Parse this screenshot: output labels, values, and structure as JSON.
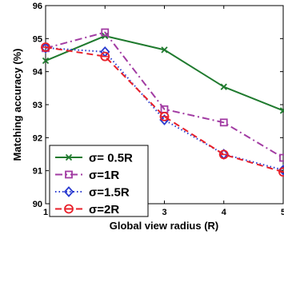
{
  "chart_data": {
    "type": "line",
    "xlabel": "Global view radius (R)",
    "ylabel": "Matching accuracy (%)",
    "x": [
      1,
      2,
      3,
      4,
      5
    ],
    "xlim": [
      1,
      5
    ],
    "ylim": [
      90,
      96
    ],
    "xticks": [
      "1",
      "2",
      "3",
      "4",
      "5"
    ],
    "yticks": [
      "90",
      "91",
      "92",
      "93",
      "94",
      "95",
      "96"
    ],
    "grid": false,
    "legend_position": "bottom-left",
    "series": [
      {
        "name": "σ= 0.5R",
        "values": [
          94.33,
          95.08,
          94.66,
          93.54,
          92.82
        ],
        "color": "#1f7a2e",
        "dash": "solid",
        "marker": "x"
      },
      {
        "name": "σ=1R",
        "values": [
          94.71,
          95.19,
          92.86,
          92.46,
          91.39
        ],
        "color": "#a23ca3",
        "dash": "dashdot",
        "marker": "square"
      },
      {
        "name": "σ=1.5R",
        "values": [
          94.72,
          94.6,
          92.54,
          91.5,
          91.02
        ],
        "color": "#2a3bd0",
        "dash": "dotted",
        "marker": "diamond"
      },
      {
        "name": "σ=2R",
        "values": [
          94.74,
          94.46,
          92.64,
          91.49,
          90.96
        ],
        "color": "#e8202a",
        "dash": "dashed",
        "marker": "circle"
      }
    ]
  }
}
